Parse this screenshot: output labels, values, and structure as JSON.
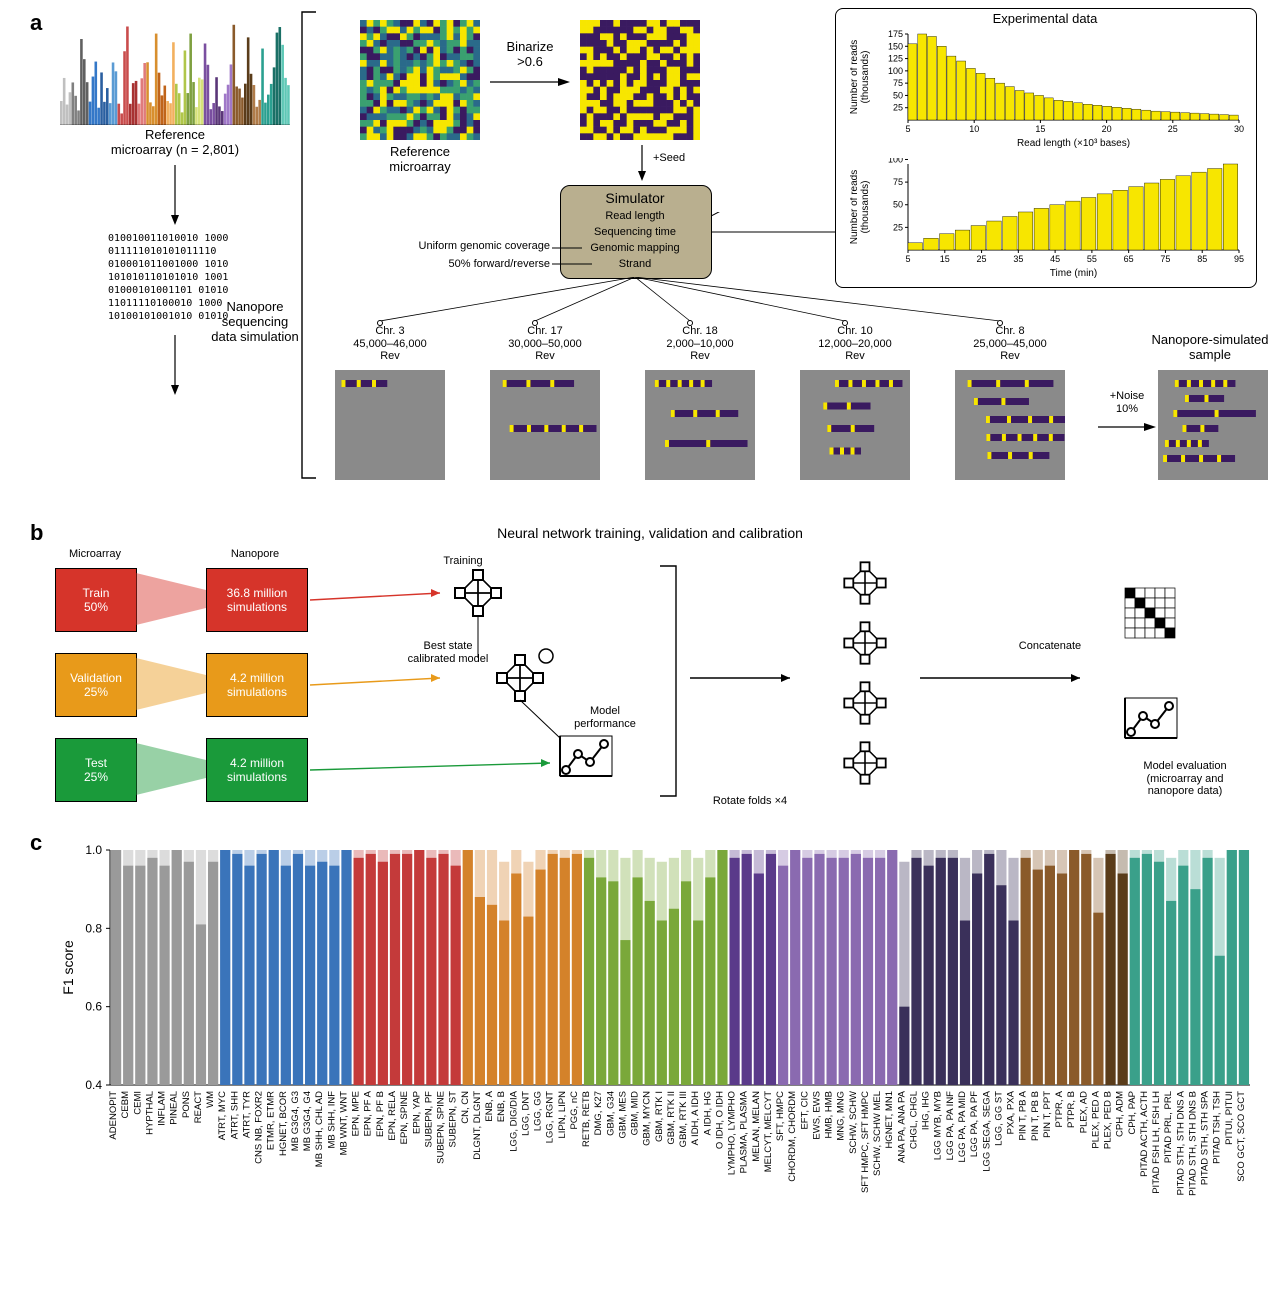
{
  "panel_letters": {
    "a": "a",
    "b": "b",
    "c": "c"
  },
  "panelA": {
    "ref_label": "Reference\nmicroarray (n = 2,801)",
    "ref_microarray_label": "Reference\nmicroarray",
    "binarize_label": "Binarize\n>0.6",
    "seed_label": "+Seed",
    "noise_label": "+Noise\n10%",
    "sim_box": {
      "title": "Simulator",
      "lines": [
        "Read length",
        "Sequencing time",
        "Genomic mapping",
        "Strand"
      ],
      "left_lines": [
        "Uniform genomic coverage",
        "50% forward/reverse"
      ]
    },
    "nanopore_sim_lbl": "Nanopore\nsequencing\ndata simulation",
    "nanopore_sample_lbl": "Nanopore-simulated\nsample",
    "exp_title": "Experimental data",
    "chart_readlen": {
      "xlabel": "Read length (×10³ bases)",
      "ylabel": "Number of reads\n(thousands)",
      "xticks": [
        5,
        10,
        15,
        20,
        25,
        30
      ],
      "yticks": [
        25,
        50,
        75,
        100,
        125,
        150,
        175
      ],
      "values": [
        155,
        175,
        170,
        150,
        130,
        120,
        105,
        95,
        85,
        75,
        68,
        60,
        55,
        50,
        45,
        40,
        38,
        35,
        32,
        30,
        28,
        26,
        24,
        22,
        20,
        18,
        17,
        16,
        15,
        14,
        13,
        12,
        11,
        10
      ],
      "bar_color": "#f7e600",
      "border": "#000000",
      "bg": "#ffffff"
    },
    "chart_time": {
      "xlabel": "Time (min)",
      "ylabel": "Number of reads\n(thousands)",
      "xticks": [
        5,
        15,
        25,
        35,
        45,
        55,
        65,
        75,
        85,
        95
      ],
      "yticks": [
        25,
        50,
        75,
        100
      ],
      "values": [
        8,
        13,
        18,
        22,
        27,
        32,
        37,
        42,
        46,
        50,
        54,
        58,
        62,
        66,
        70,
        74,
        78,
        82,
        86,
        90,
        95
      ],
      "bar_color": "#f7e600",
      "border": "#000000",
      "bg": "#ffffff"
    },
    "chr_panels": [
      {
        "title": "Chr. 3\n45,000–46,000\nRev"
      },
      {
        "title": "Chr. 17\n30,000–50,000\nRev"
      },
      {
        "title": "Chr. 18\n2,000–10,000\nRev"
      },
      {
        "title": "Chr. 10\n12,000–20,000\nRev"
      },
      {
        "title": "Chr. 8\n25,000–45,000\nRev"
      }
    ],
    "binary_rows": [
      "010010011010010 1000",
      "011111010101011110",
      "010001011001000 1010",
      "101010110101010 1001",
      "01000101001101 01010",
      "11011110100010 1000",
      "10100101001010 01010"
    ],
    "topchart_colors": [
      "#c0c0c0",
      "#808080",
      "#606060",
      "#3478c8",
      "#2a5fa0",
      "#5a9bd4",
      "#c94c4c",
      "#a83232",
      "#e07b7b",
      "#d88f2e",
      "#c0641a",
      "#f2b05e",
      "#b0c64a",
      "#7ea040",
      "#d6e27a",
      "#7a4fa0",
      "#5a3678",
      "#a078c8",
      "#8a5a2a",
      "#5a3c1a",
      "#b07c4a",
      "#2aa090",
      "#1a7066",
      "#5ec8b6"
    ]
  },
  "panelB": {
    "title": "Neural network training, validation and calibration",
    "boxes": {
      "train": {
        "label": "Train\n50%",
        "color": "#d6342a"
      },
      "val": {
        "label": "Validation\n25%",
        "color": "#e89a1a"
      },
      "test": {
        "label": "Test\n25%",
        "color": "#1a9a3a"
      },
      "np_train": {
        "label": "36.8 million\nsimulations",
        "color": "#d6342a"
      },
      "np_val": {
        "label": "4.2 million\nsimulations",
        "color": "#e89a1a"
      },
      "np_test": {
        "label": "4.2 million\nsimulations",
        "color": "#1a9a3a"
      }
    },
    "col_labels": {
      "left": "Microarray",
      "right": "Nanopore"
    },
    "training_lbl": "Training",
    "beststate_lbl": "Best state\ncalibrated model",
    "modelperf_lbl": "Model\nperformance",
    "rotate_lbl": "Rotate folds ×4",
    "concat_lbl": "Concatenate",
    "modeval_lbl": "Model evaluation\n(microarray and\nnanopore data)"
  },
  "panelC": {
    "ylabel": "F1 score",
    "ylim": [
      0.4,
      1.0
    ],
    "yticks": [
      0.4,
      0.6,
      0.8,
      1.0
    ],
    "categories": [
      "ADENOPIT",
      "CEBM",
      "CEMI",
      "HYPTHAL",
      "INFLAM",
      "PINEAL",
      "PONS",
      "REACT",
      "WM",
      "ATRT, MYC",
      "ATRT, SHH",
      "ATRT, TYR",
      "CNS NB, FOXR2",
      "ETMR, ETMR",
      "HGNET, BCOR",
      "MB G3G4, G3",
      "MB G3G4, G4",
      "MB SHH, CHL AD",
      "MB SHH, INF",
      "MB WNT, WNT",
      "EPN, MPE",
      "EPN, PF A",
      "EPN, PF B",
      "EPN, RELA",
      "EPN, SPINE",
      "EPN, YAP",
      "SUBEPN, PF",
      "SUBEPN, SPINE",
      "SUBEPN, ST",
      "CN, CN",
      "DLGNT, DLGNT",
      "ENB, A",
      "ENB, B",
      "LGG, DIG/DIA",
      "LGG, DNT",
      "LGG, GG",
      "LGG, RGNT",
      "LIPN, LIPN",
      "PGG, nC",
      "RETB, RETB",
      "DMG, K27",
      "GBM, G34",
      "GBM, MES",
      "GBM, MID",
      "GBM, MYCN",
      "GBM, RTK I",
      "GBM, RTK II",
      "GBM, RTK III",
      "A IDH, A IDH",
      "A IDH, HG",
      "O IDH, O IDH",
      "LYMPHO, LYMPHO",
      "PLASMA, PLASMA",
      "MELAN, MELAN",
      "MELCYT, MELCYT",
      "SFT, HMPC",
      "CHORDM, CHORDM",
      "EFT, CIC",
      "EWS, EWS",
      "HMB, HMB",
      "MNG, MNG",
      "SCHW, SCHW",
      "SFT HMPC, SFT HMPC",
      "SCHW, SCHW MEL",
      "HGNET, MN1",
      "ANA PA, ANA PA",
      "CHGL, CHGL",
      "IHG, IHG",
      "LGG MYB, MYB",
      "LGG PA, PA INF",
      "LGG PA, PA MID",
      "LGG PA, PA PF",
      "LGG SEGA, SEGA",
      "LGG, GG ST",
      "PXA, PXA",
      "PIN T, PB A",
      "PIN T, PB B",
      "PIN T, PPT",
      "PTPR, A",
      "PTPR, B",
      "PLEX, AD",
      "PLEX, PED A",
      "PLEX, PED B",
      "CPH, ADM",
      "CPH, PAP",
      "PITAD ACTH, ACTH",
      "PITAD FSH LH, FSH LH",
      "PITAD PRL, PRL",
      "PITAD STH, STH DNS A",
      "PITAD STH, STH DNS B",
      "PITAD STH, STH SPA",
      "PITAD TSH, TSH",
      "PITUI, PITUI",
      "SCO GCT, SCO GCT"
    ],
    "values": [
      1.0,
      0.96,
      0.96,
      0.98,
      0.96,
      1.0,
      0.97,
      0.81,
      0.97,
      1.0,
      0.99,
      0.96,
      0.99,
      1.0,
      0.96,
      0.99,
      0.96,
      0.97,
      0.96,
      1.0,
      0.98,
      0.99,
      0.97,
      0.99,
      0.99,
      1.0,
      0.98,
      0.99,
      0.96,
      1.0,
      0.88,
      0.86,
      0.82,
      0.94,
      0.83,
      0.95,
      0.99,
      0.98,
      0.99,
      0.98,
      0.93,
      0.92,
      0.77,
      0.93,
      0.87,
      0.82,
      0.85,
      0.92,
      0.82,
      0.93,
      1.0,
      0.98,
      0.99,
      0.94,
      0.99,
      0.96,
      1.0,
      0.98,
      0.99,
      0.98,
      0.98,
      0.99,
      0.98,
      0.98,
      1.0,
      0.6,
      0.98,
      0.96,
      0.98,
      0.98,
      0.82,
      0.94,
      0.99,
      0.91,
      0.82,
      0.98,
      0.95,
      0.96,
      0.94,
      1.0,
      0.99,
      0.84,
      0.99,
      0.94,
      0.98,
      0.99,
      0.97,
      0.87,
      0.96,
      0.9,
      0.98,
      0.73,
      1.0,
      1.0
    ],
    "upper": [
      1.0,
      1.0,
      1.0,
      1.0,
      1.0,
      1.0,
      1.0,
      1.0,
      1.0,
      1.0,
      1.0,
      1.0,
      1.0,
      1.0,
      1.0,
      1.0,
      1.0,
      1.0,
      1.0,
      1.0,
      1.0,
      1.0,
      1.0,
      1.0,
      1.0,
      1.0,
      1.0,
      1.0,
      1.0,
      1.0,
      1.0,
      1.0,
      0.97,
      1.0,
      0.97,
      1.0,
      1.0,
      1.0,
      1.0,
      1.0,
      1.0,
      1.0,
      0.98,
      1.0,
      0.98,
      0.97,
      0.98,
      1.0,
      0.98,
      1.0,
      1.0,
      1.0,
      1.0,
      1.0,
      1.0,
      1.0,
      1.0,
      1.0,
      1.0,
      1.0,
      1.0,
      1.0,
      1.0,
      1.0,
      1.0,
      0.97,
      1.0,
      1.0,
      1.0,
      1.0,
      0.98,
      1.0,
      1.0,
      1.0,
      0.98,
      1.0,
      1.0,
      1.0,
      1.0,
      1.0,
      1.0,
      0.98,
      1.0,
      1.0,
      1.0,
      1.0,
      1.0,
      0.98,
      1.0,
      1.0,
      1.0,
      0.98,
      1.0,
      1.0
    ],
    "group_colors": [
      {
        "count": 9,
        "color": "#9a9a9a"
      },
      {
        "count": 11,
        "color": "#3a74ba"
      },
      {
        "count": 9,
        "color": "#c43a3a"
      },
      {
        "count": 10,
        "color": "#d4822a"
      },
      {
        "count": 12,
        "color": "#7aa83a"
      },
      {
        "count": 4,
        "color": "#5a3a8a"
      },
      {
        "count": 10,
        "color": "#8a6ab0"
      },
      {
        "count": 10,
        "color": "#3a305a"
      },
      {
        "count": 7,
        "color": "#8a5a2a"
      },
      {
        "count": 2,
        "color": "#5a3c1a"
      },
      {
        "count": 10,
        "color": "#3aa08a"
      }
    ],
    "bg": "#ffffff",
    "grid_color": "#d8d8d8"
  }
}
